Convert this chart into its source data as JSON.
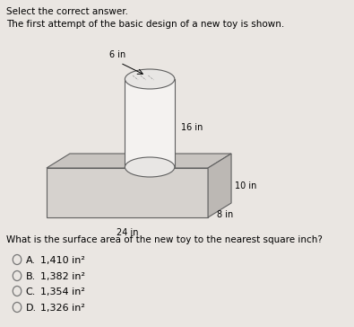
{
  "bg_color": "#eae6e2",
  "title_line1": "Select the correct answer.",
  "title_line2": "The first attempt of the basic design of a new toy is shown.",
  "question": "What is the surface area of the new toy to the nearest square inch?",
  "choices_letter": [
    "A.",
    "B.",
    "C.",
    "D."
  ],
  "choices_value": [
    "1,410 in²",
    "1,382 in²",
    "1,354 in²",
    "1,326 in²"
  ],
  "dim_6in": "6 in",
  "dim_16in": "16 in",
  "dim_10in": "10 in",
  "dim_8in": "8 in",
  "dim_24in": "24 in",
  "box_face_color": "#d6d2ce",
  "box_top_color": "#c8c4c0",
  "box_right_color": "#bcb8b4",
  "cyl_body_color": "#f4f2f0",
  "cyl_ellipse_color": "#e8e6e4",
  "edge_color": "#606060",
  "text_color": "#333333"
}
